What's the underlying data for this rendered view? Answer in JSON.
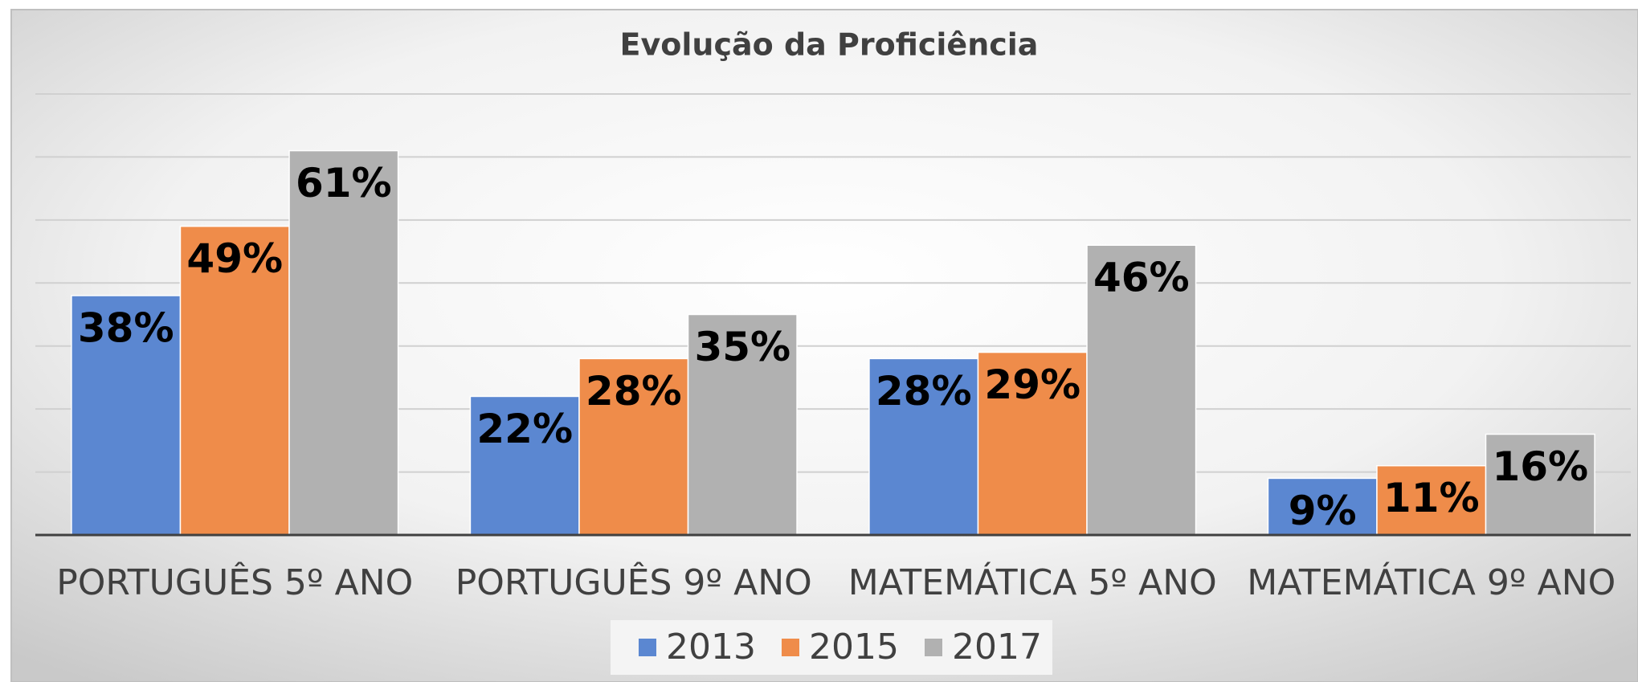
{
  "chart_data": {
    "type": "bar",
    "title": "Evolução da Proficiência",
    "categories": [
      "PORTUGUÊS 5º ANO",
      "PORTUGUÊS 9º ANO",
      "MATEMÁTICA 5º ANO",
      "MATEMÁTICA 9º ANO"
    ],
    "series": [
      {
        "name": "2013",
        "color": "#5b87d1",
        "values": [
          38,
          22,
          28,
          9
        ],
        "value_labels": [
          "38%",
          "22%",
          "28%",
          "9%"
        ]
      },
      {
        "name": "2015",
        "color": "#ef8c4a",
        "values": [
          49,
          28,
          29,
          11
        ],
        "value_labels": [
          "49%",
          "28%",
          "29%",
          "11%"
        ]
      },
      {
        "name": "2017",
        "color": "#b1b1b1",
        "values": [
          61,
          35,
          46,
          16
        ],
        "value_labels": [
          "61%",
          "35%",
          "46%",
          "16%"
        ]
      }
    ],
    "ylim": [
      0,
      70
    ],
    "yticks": [
      0,
      10,
      20,
      30,
      40,
      50,
      60,
      70
    ],
    "grid": true,
    "legend": "bottom"
  }
}
